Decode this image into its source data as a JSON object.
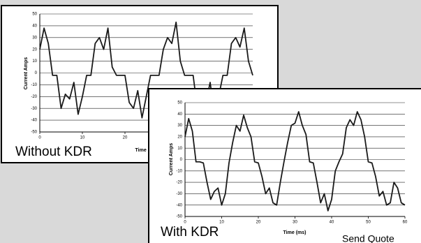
{
  "chart_data": [
    {
      "type": "line",
      "title": "Without KDR",
      "xlabel": "Time (ms)",
      "ylabel": "Current Amps",
      "x": [
        0,
        1,
        2,
        3,
        4,
        5,
        6,
        7,
        8,
        9,
        10,
        11,
        12,
        13,
        14,
        15,
        16,
        17,
        18,
        19,
        20,
        21,
        22,
        23,
        24,
        25,
        26,
        27,
        28,
        29,
        30,
        31,
        32,
        33,
        34,
        35,
        36,
        37,
        38,
        39,
        40,
        41,
        42,
        43,
        44,
        45,
        46,
        47,
        48,
        49,
        50
      ],
      "values": [
        20,
        38,
        25,
        -2,
        -2,
        -30,
        -18,
        -22,
        -8,
        -35,
        -20,
        -2,
        -2,
        25,
        30,
        20,
        38,
        5,
        -2,
        -2,
        -2,
        -25,
        -30,
        -15,
        -38,
        -20,
        -2,
        -2,
        -2,
        20,
        30,
        25,
        43,
        10,
        -2,
        -2,
        -2,
        -30,
        -18,
        -25,
        -8,
        -35,
        -20,
        -2,
        -2,
        25,
        30,
        22,
        38,
        10,
        -2
      ],
      "color": "#1a1a1a",
      "xlim": [
        0,
        50
      ],
      "xticks": [
        0,
        10,
        20,
        30,
        40,
        50
      ],
      "ylim": [
        -50,
        50
      ],
      "yticks": [
        -50,
        -40,
        -30,
        -20,
        -10,
        0,
        10,
        20,
        30,
        40,
        50
      ],
      "grid": true
    },
    {
      "type": "line",
      "title": "With KDR",
      "xlabel": "Time (ms)",
      "ylabel": "Current Amps",
      "x": [
        0,
        1,
        2,
        3,
        4,
        5,
        6,
        7,
        8,
        9,
        10,
        11,
        12,
        13,
        14,
        15,
        16,
        17,
        18,
        19,
        20,
        21,
        22,
        23,
        24,
        25,
        26,
        27,
        28,
        29,
        30,
        31,
        32,
        33,
        34,
        35,
        36,
        37,
        38,
        39,
        40,
        41,
        42,
        43,
        44,
        45,
        46,
        47,
        48,
        49,
        50,
        51,
        52,
        53,
        54,
        55,
        56,
        57,
        58,
        59,
        60
      ],
      "values": [
        20,
        36,
        25,
        -2,
        -2,
        -3,
        -20,
        -35,
        -28,
        -25,
        -40,
        -30,
        -3,
        15,
        30,
        25,
        39,
        28,
        20,
        -2,
        -3,
        -15,
        -30,
        -25,
        -38,
        -40,
        -20,
        -2,
        15,
        30,
        32,
        42,
        30,
        22,
        -2,
        -3,
        -20,
        -38,
        -30,
        -45,
        -35,
        -10,
        -2,
        5,
        28,
        35,
        30,
        42,
        35,
        20,
        -2,
        -3,
        -15,
        -32,
        -28,
        -40,
        -38,
        -20,
        -25,
        -38,
        -40
      ],
      "color": "#1a1a1a",
      "xlim": [
        0,
        60
      ],
      "xticks": [
        0,
        10,
        20,
        30,
        40,
        50,
        60
      ],
      "ylim": [
        -50,
        50
      ],
      "yticks": [
        -50,
        -40,
        -30,
        -20,
        -10,
        0,
        10,
        20,
        30,
        40,
        50
      ],
      "grid": true
    }
  ],
  "button": {
    "label": "Send Quote"
  }
}
